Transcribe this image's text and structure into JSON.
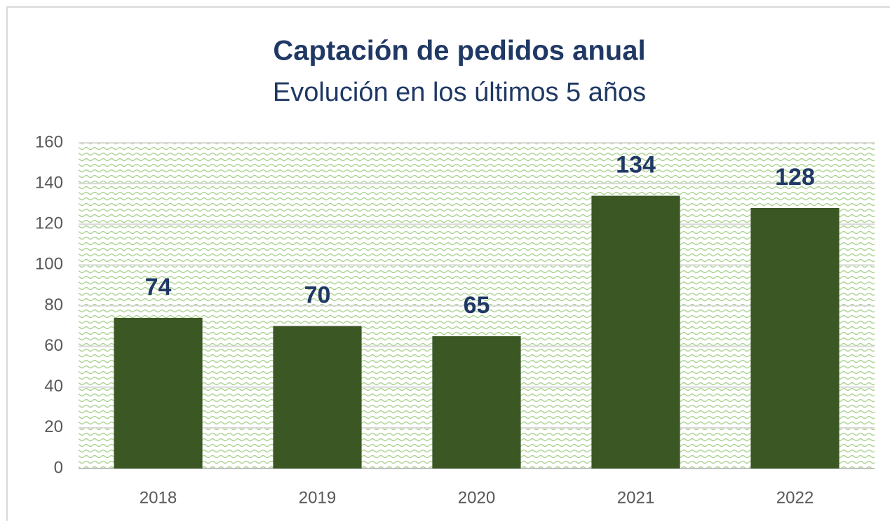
{
  "chart_data": {
    "type": "bar",
    "title": "Captación de pedidos anual",
    "subtitle": "Evolución en los últimos 5 años",
    "categories": [
      "2018",
      "2019",
      "2020",
      "2021",
      "2022"
    ],
    "values": [
      74,
      70,
      65,
      134,
      128
    ],
    "color": "#3b5724",
    "ylim": [
      0,
      160
    ],
    "yticks": [
      0,
      20,
      40,
      60,
      80,
      100,
      120,
      140,
      160
    ],
    "grid": true
  }
}
